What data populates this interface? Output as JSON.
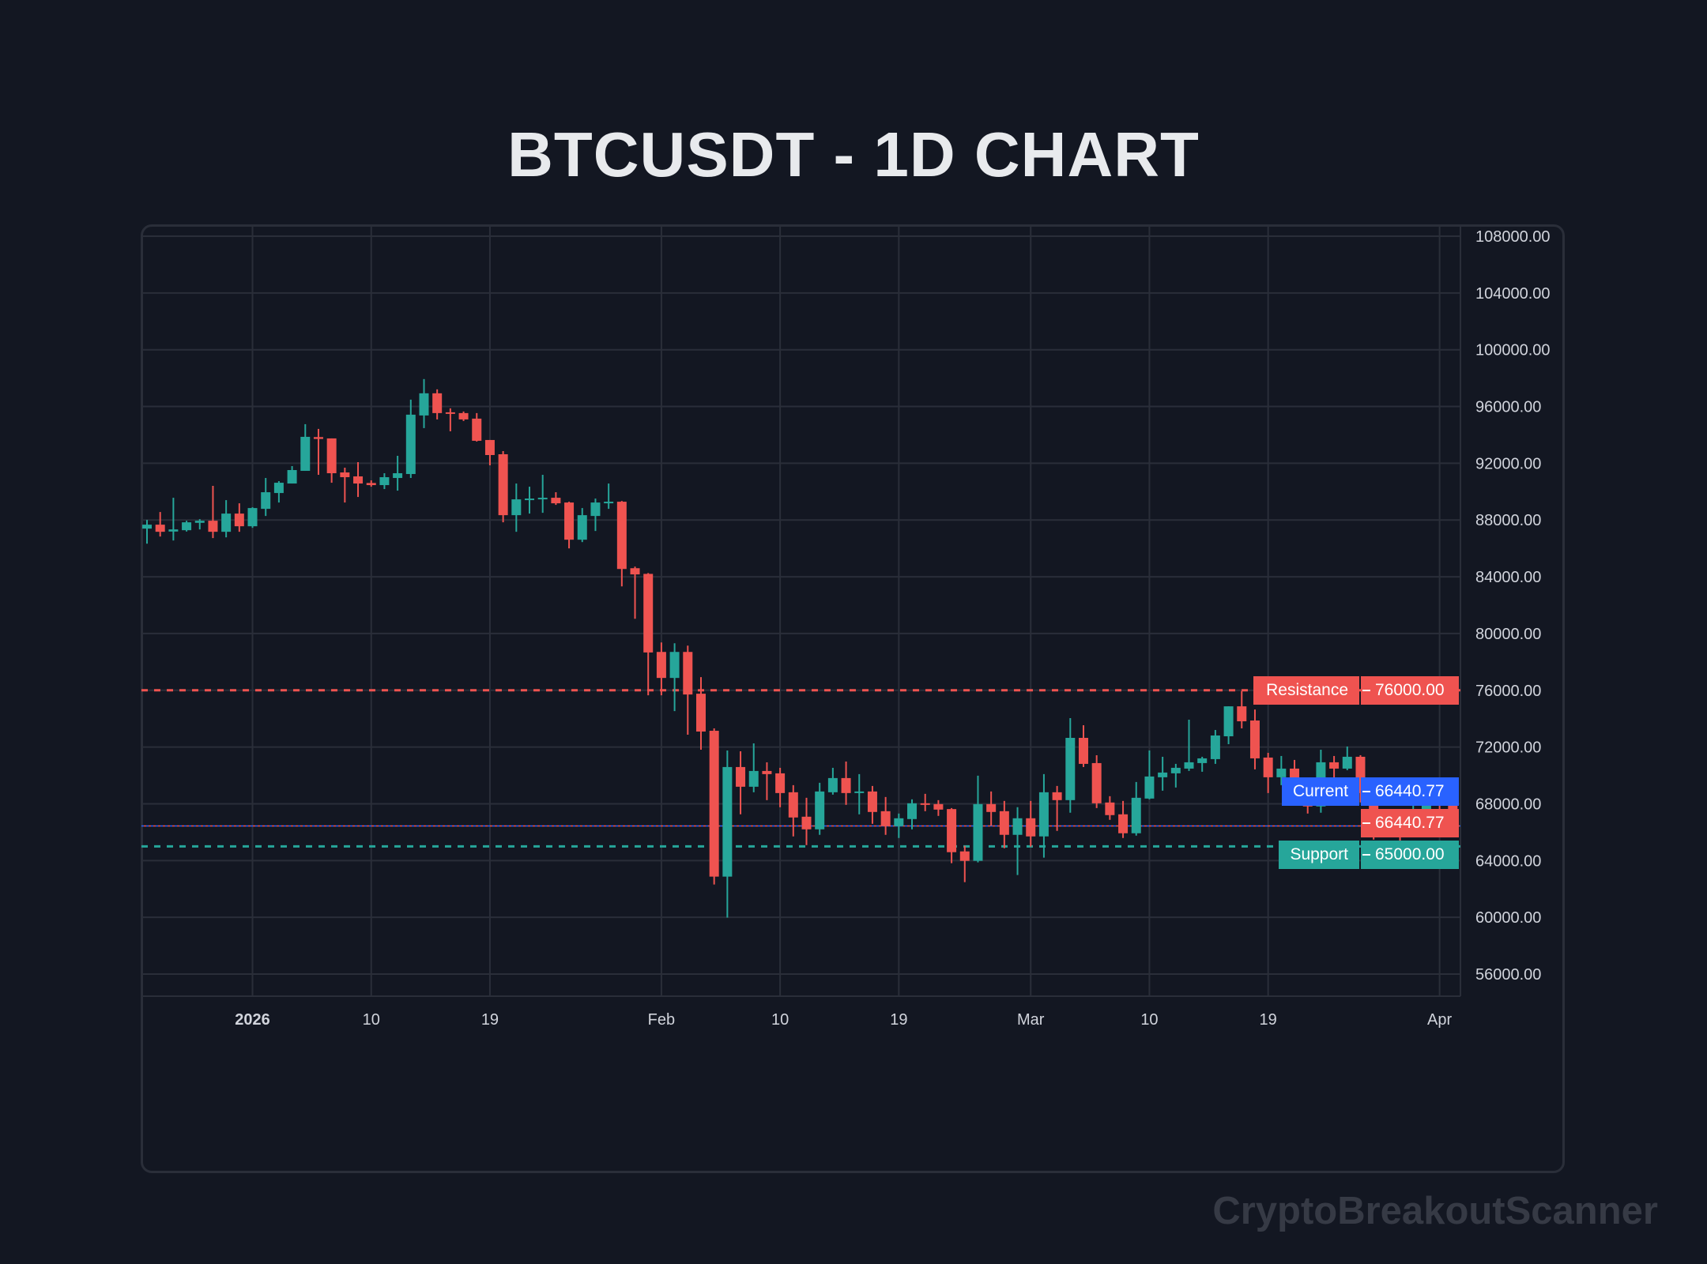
{
  "title": "BTCUSDT - 1D CHART",
  "watermark": "CryptoBreakoutScanner",
  "colors": {
    "background": "#131722",
    "up": "#26a69a",
    "down": "#ef5350",
    "grid": "#2a2e39",
    "current": "#2962ff",
    "text": "#d1d4dc"
  },
  "levels": {
    "resistance": {
      "label": "Resistance",
      "value_text": "76000.00",
      "value": 76000
    },
    "support": {
      "label": "Support",
      "value_text": "65000.00",
      "value": 65000
    },
    "current": {
      "label": "Current",
      "value_text": "66440.77",
      "value": 66440.77
    },
    "last_price": {
      "value_text": "66440.77",
      "value": 66440.77
    }
  },
  "chart_data": {
    "type": "candlestick",
    "title": "BTCUSDT - 1D CHART",
    "ylim": [
      54500,
      108800
    ],
    "grid": true,
    "y_ticks": [
      "108000.00",
      "104000.00",
      "100000.00",
      "96000.00",
      "92000.00",
      "88000.00",
      "84000.00",
      "80000.00",
      "76000.00",
      "72000.00",
      "68000.00",
      "64000.00",
      "60000.00",
      "56000.00"
    ],
    "y_tick_values": [
      108000,
      104000,
      100000,
      96000,
      92000,
      88000,
      84000,
      80000,
      76000,
      72000,
      68000,
      64000,
      60000,
      56000
    ],
    "x_ticks": [
      {
        "date": "2026-01-01",
        "label": "2026",
        "bold": true
      },
      {
        "date": "2026-01-10",
        "label": "10"
      },
      {
        "date": "2026-01-19",
        "label": "19"
      },
      {
        "date": "2026-02-01",
        "label": "Feb"
      },
      {
        "date": "2026-02-10",
        "label": "10"
      },
      {
        "date": "2026-02-19",
        "label": "19"
      },
      {
        "date": "2026-03-01",
        "label": "Mar"
      },
      {
        "date": "2026-03-10",
        "label": "10"
      },
      {
        "date": "2026-03-19",
        "label": "19"
      },
      {
        "date": "2026-04-01",
        "label": "Apr"
      }
    ],
    "columns": [
      "date",
      "open",
      "high",
      "low",
      "close"
    ],
    "candles": [
      [
        "2025-12-24",
        87393,
        88006,
        86333,
        87672
      ],
      [
        "2025-12-25",
        87672,
        88564,
        86835,
        87170
      ],
      [
        "2025-12-26",
        87188,
        89568,
        86556,
        87337
      ],
      [
        "2025-12-27",
        87281,
        87950,
        87188,
        87839
      ],
      [
        "2025-12-28",
        87802,
        88062,
        87337,
        87950
      ],
      [
        "2025-12-29",
        87950,
        90404,
        86724,
        87170
      ],
      [
        "2025-12-30",
        87170,
        89401,
        86779,
        88453
      ],
      [
        "2025-12-31",
        88453,
        89178,
        87170,
        87560
      ],
      [
        "2026-01-01",
        87560,
        88899,
        87449,
        88843
      ],
      [
        "2026-01-02",
        88787,
        90962,
        88285,
        89958
      ],
      [
        "2026-01-03",
        89902,
        90739,
        89233,
        90627
      ],
      [
        "2026-01-04",
        90572,
        91799,
        90572,
        91520
      ],
      [
        "2026-01-05",
        91464,
        94754,
        91464,
        93862
      ],
      [
        "2026-01-06",
        93844,
        94420,
        91185,
        93713
      ],
      [
        "2026-01-07",
        93751,
        93751,
        90627,
        91297
      ],
      [
        "2026-01-08",
        91352,
        91687,
        89233,
        91018
      ],
      [
        "2026-01-09",
        91074,
        92077,
        89624,
        90572
      ],
      [
        "2026-01-10",
        90609,
        90795,
        90349,
        90460
      ],
      [
        "2026-01-11",
        90460,
        91297,
        90181,
        91018
      ],
      [
        "2026-01-12",
        90962,
        92524,
        90070,
        91297
      ],
      [
        "2026-01-13",
        91241,
        96483,
        90962,
        95424
      ],
      [
        "2026-01-14",
        95368,
        97933,
        94476,
        96930
      ],
      [
        "2026-01-15",
        96930,
        97208,
        95089,
        95535
      ],
      [
        "2026-01-16",
        95591,
        95870,
        94253,
        95480
      ],
      [
        "2026-01-17",
        95535,
        95647,
        94978,
        95089
      ],
      [
        "2026-01-18",
        95145,
        95535,
        93528,
        93583
      ],
      [
        "2026-01-19",
        93639,
        93639,
        91855,
        92579
      ],
      [
        "2026-01-20",
        92635,
        92858,
        87839,
        88341
      ],
      [
        "2026-01-21",
        88341,
        90572,
        87170,
        89456
      ],
      [
        "2026-01-22",
        89456,
        90349,
        88453,
        89512
      ],
      [
        "2026-01-23",
        89512,
        91185,
        88508,
        89568
      ],
      [
        "2026-01-24",
        89568,
        89958,
        89066,
        89178
      ],
      [
        "2026-01-25",
        89233,
        89289,
        86000,
        86612
      ],
      [
        "2026-01-26",
        86612,
        88843,
        86445,
        88341
      ],
      [
        "2026-01-27",
        88285,
        89512,
        87226,
        89233
      ],
      [
        "2026-01-28",
        89233,
        90572,
        88787,
        89289
      ],
      [
        "2026-01-29",
        89289,
        89345,
        83322,
        84549
      ],
      [
        "2026-01-30",
        84604,
        84716,
        81037,
        84167
      ],
      [
        "2026-01-31",
        84204,
        84259,
        75648,
        78666
      ],
      [
        "2026-02-01",
        78703,
        79370,
        75648,
        76870
      ],
      [
        "2026-02-02",
        76870,
        79314,
        74536,
        78703
      ],
      [
        "2026-02-03",
        78703,
        79148,
        72870,
        75704
      ],
      [
        "2026-02-04",
        75759,
        76926,
        71815,
        73092
      ],
      [
        "2026-02-05",
        73147,
        73314,
        62313,
        62869
      ],
      [
        "2026-02-06",
        62869,
        71758,
        59980,
        70592
      ],
      [
        "2026-02-07",
        70592,
        71703,
        67258,
        69203
      ],
      [
        "2026-02-08",
        69203,
        72259,
        68814,
        70314
      ],
      [
        "2026-02-09",
        70314,
        70925,
        68258,
        70092
      ],
      [
        "2026-02-10",
        70147,
        70536,
        67758,
        68758
      ],
      [
        "2026-02-11",
        68814,
        69314,
        65702,
        67036
      ],
      [
        "2026-02-12",
        67091,
        68425,
        65091,
        66202
      ],
      [
        "2026-02-13",
        66202,
        69481,
        65813,
        68869
      ],
      [
        "2026-02-14",
        68814,
        70536,
        68647,
        69814
      ],
      [
        "2026-02-15",
        69814,
        70980,
        67925,
        68758
      ],
      [
        "2026-02-16",
        68795,
        70092,
        67258,
        68869
      ],
      [
        "2026-02-17",
        68869,
        69258,
        66591,
        67425
      ],
      [
        "2026-02-18",
        67480,
        68480,
        65813,
        66425
      ],
      [
        "2026-02-19",
        66425,
        67314,
        65591,
        66980
      ],
      [
        "2026-02-20",
        66924,
        68314,
        66202,
        68036
      ],
      [
        "2026-02-21",
        68036,
        68703,
        67480,
        67925
      ],
      [
        "2026-02-22",
        67980,
        68258,
        67147,
        67592
      ],
      [
        "2026-02-23",
        67629,
        67703,
        63813,
        64591
      ],
      [
        "2026-02-24",
        64647,
        65036,
        62480,
        63980
      ],
      [
        "2026-02-25",
        63980,
        69981,
        63869,
        67980
      ],
      [
        "2026-02-26",
        67981,
        68870,
        66444,
        67425
      ],
      [
        "2026-02-27",
        67481,
        68203,
        64870,
        65814
      ],
      [
        "2026-02-28",
        65814,
        67759,
        62980,
        66981
      ],
      [
        "2026-03-01",
        66981,
        68203,
        64981,
        65703
      ],
      [
        "2026-03-02",
        65703,
        70092,
        64203,
        68814
      ],
      [
        "2026-03-03",
        68814,
        69259,
        66092,
        68259
      ],
      [
        "2026-03-04",
        68259,
        74037,
        67370,
        72648
      ],
      [
        "2026-03-05",
        72648,
        73537,
        70592,
        70814
      ],
      [
        "2026-03-06",
        70870,
        71426,
        67703,
        68036
      ],
      [
        "2026-03-07",
        68092,
        68536,
        66870,
        67203
      ],
      [
        "2026-03-08",
        67259,
        68203,
        65592,
        65925
      ],
      [
        "2026-03-09",
        65925,
        69537,
        65758,
        68425
      ],
      [
        "2026-03-10",
        68370,
        71759,
        68314,
        69925
      ],
      [
        "2026-03-11",
        69870,
        71314,
        68925,
        70203
      ],
      [
        "2026-03-12",
        70148,
        70815,
        69148,
        70537
      ],
      [
        "2026-03-13",
        70481,
        73926,
        70314,
        70926
      ],
      [
        "2026-03-14",
        70870,
        71314,
        70259,
        71203
      ],
      [
        "2026-03-15",
        71148,
        73203,
        70815,
        72815
      ],
      [
        "2026-03-16",
        72759,
        74870,
        72203,
        74870
      ],
      [
        "2026-03-17",
        74870,
        75944,
        73315,
        73815
      ],
      [
        "2026-03-18",
        73870,
        74648,
        70426,
        71203
      ],
      [
        "2026-03-19",
        71259,
        71592,
        68759,
        69870
      ],
      [
        "2026-03-20",
        69870,
        71370,
        69315,
        70481
      ],
      [
        "2026-03-21",
        70481,
        71092,
        68537,
        68870
      ],
      [
        "2026-03-22",
        68926,
        69592,
        67314,
        67815
      ],
      [
        "2026-03-23",
        67815,
        71815,
        67370,
        70926
      ],
      [
        "2026-03-24",
        70926,
        71370,
        68870,
        70481
      ],
      [
        "2026-03-25",
        70481,
        72037,
        70370,
        71315
      ],
      [
        "2026-03-26",
        71315,
        71426,
        68092,
        68759
      ],
      [
        "2026-03-27",
        68815,
        69148,
        65481,
        66389
      ],
      [
        "2026-03-28",
        66481,
        67315,
        65870,
        66333
      ],
      [
        "2026-03-29",
        66426,
        67148,
        64926,
        65981
      ],
      [
        "2026-03-30",
        65981,
        68148,
        65759,
        66815
      ],
      [
        "2026-03-31",
        66759,
        68481,
        65926,
        68259
      ],
      [
        "2026-04-01",
        68259,
        69315,
        67537,
        68037
      ],
      [
        "2026-04-02",
        68092,
        68648,
        66148,
        66440.77
      ]
    ]
  }
}
